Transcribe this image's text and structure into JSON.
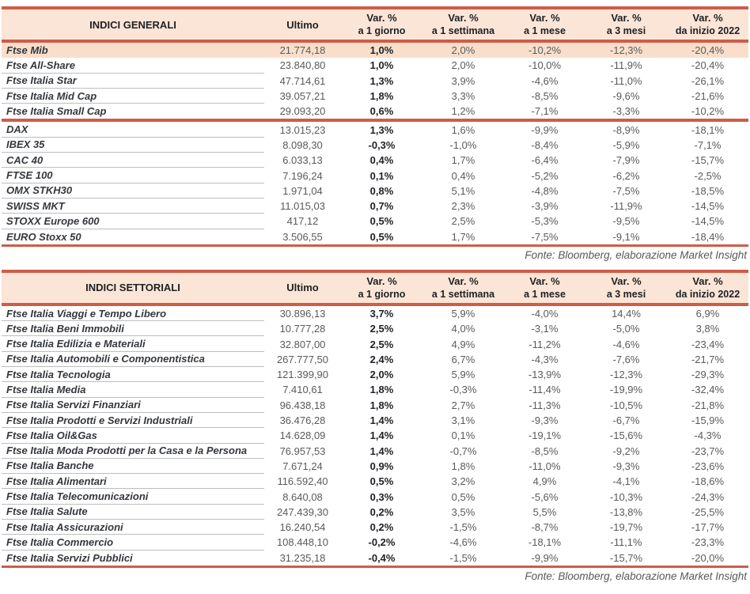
{
  "colors": {
    "accent_line": "#CE5D48",
    "header_bg": "#FBE5D6",
    "highlight_row_bg": "#F9DFCB"
  },
  "tables": [
    {
      "title": "INDICI GENERALI",
      "col_headers": [
        {
          "line1": "Ultimo",
          "line2": ""
        },
        {
          "line1": "Var. %",
          "line2": "a 1 giorno"
        },
        {
          "line1": "Var. %",
          "line2": "a 1 settimana"
        },
        {
          "line1": "Var. %",
          "line2": "a 1 mese"
        },
        {
          "line1": "Var. %",
          "line2": "a 3 mesi"
        },
        {
          "line1": "Var. %",
          "line2": "da inizio 2022"
        }
      ],
      "groups": [
        {
          "rows": [
            {
              "name": "Ftse Mib",
              "highlight": true,
              "values": [
                "21.774,18",
                "1,0%",
                "2,0%",
                "-10,2%",
                "-12,3%",
                "-20,4%"
              ]
            },
            {
              "name": "Ftse All-Share",
              "values": [
                "23.840,80",
                "1,0%",
                "2,0%",
                "-10,0%",
                "-11,9%",
                "-20,4%"
              ]
            },
            {
              "name": "Ftse Italia Star",
              "values": [
                "47.714,61",
                "1,3%",
                "3,9%",
                "-4,6%",
                "-11,0%",
                "-26,1%"
              ]
            },
            {
              "name": "Ftse Italia Mid Cap",
              "values": [
                "39.057,21",
                "1,8%",
                "3,3%",
                "-8,5%",
                "-9,6%",
                "-21,6%"
              ]
            },
            {
              "name": "Ftse Italia Small Cap",
              "values": [
                "29.093,20",
                "0,6%",
                "1,2%",
                "-7,1%",
                "-3,3%",
                "-10,2%"
              ]
            }
          ]
        },
        {
          "rows": [
            {
              "name": "DAX",
              "values": [
                "13.015,23",
                "1,3%",
                "1,6%",
                "-9,9%",
                "-8,9%",
                "-18,1%"
              ]
            },
            {
              "name": "IBEX 35",
              "values": [
                "8.098,30",
                "-0,3%",
                "-1,0%",
                "-8,4%",
                "-5,9%",
                "-7,1%"
              ]
            },
            {
              "name": "CAC 40",
              "values": [
                "6.033,13",
                "0,4%",
                "1,7%",
                "-6,4%",
                "-7,9%",
                "-15,7%"
              ]
            },
            {
              "name": "FTSE 100",
              "values": [
                "7.196,24",
                "0,1%",
                "0,4%",
                "-5,2%",
                "-6,2%",
                "-2,5%"
              ]
            },
            {
              "name": "OMX STKH30",
              "values": [
                "1.971,04",
                "0,8%",
                "5,1%",
                "-4,8%",
                "-7,5%",
                "-18,5%"
              ]
            },
            {
              "name": "SWISS MKT",
              "values": [
                "11.015,03",
                "0,7%",
                "2,3%",
                "-3,9%",
                "-11,9%",
                "-14,5%"
              ]
            },
            {
              "name": "STOXX Europe 600",
              "values": [
                "417,12",
                "0,5%",
                "2,5%",
                "-5,3%",
                "-9,5%",
                "-14,5%"
              ]
            },
            {
              "name": "EURO Stoxx 50",
              "values": [
                "3.506,55",
                "0,5%",
                "1,7%",
                "-7,5%",
                "-9,1%",
                "-18,4%"
              ]
            }
          ]
        }
      ],
      "source": "Fonte: Bloomberg, elaborazione Market Insight"
    },
    {
      "title": "INDICI SETTORIALI",
      "col_headers": [
        {
          "line1": "Ultimo",
          "line2": ""
        },
        {
          "line1": "Var. %",
          "line2": "a 1 giorno"
        },
        {
          "line1": "Var. %",
          "line2": "a 1 settimana"
        },
        {
          "line1": "Var. %",
          "line2": "a 1 mese"
        },
        {
          "line1": "Var. %",
          "line2": "a 3 mesi"
        },
        {
          "line1": "Var. %",
          "line2": "da inizio 2022"
        }
      ],
      "groups": [
        {
          "rows": [
            {
              "name": "Ftse Italia Viaggi e Tempo Libero",
              "values": [
                "30.896,13",
                "3,7%",
                "5,9%",
                "-4,0%",
                "14,4%",
                "6,9%"
              ]
            },
            {
              "name": "Ftse Italia Beni Immobili",
              "values": [
                "10.777,28",
                "2,5%",
                "4,0%",
                "-3,1%",
                "-5,0%",
                "3,8%"
              ]
            },
            {
              "name": "Ftse Italia Edilizia e Materiali",
              "values": [
                "32.807,00",
                "2,5%",
                "4,9%",
                "-11,2%",
                "-4,6%",
                "-23,4%"
              ]
            },
            {
              "name": "Ftse Italia Automobili e Componentistica",
              "values": [
                "267.777,50",
                "2,4%",
                "6,7%",
                "-4,3%",
                "-7,6%",
                "-21,7%"
              ]
            },
            {
              "name": "Ftse Italia Tecnologia",
              "values": [
                "121.399,90",
                "2,0%",
                "5,9%",
                "-13,9%",
                "-12,3%",
                "-29,3%"
              ]
            },
            {
              "name": "Ftse Italia Media",
              "values": [
                "7.410,61",
                "1,8%",
                "-0,3%",
                "-11,4%",
                "-19,9%",
                "-32,4%"
              ]
            },
            {
              "name": "Ftse Italia Servizi Finanziari",
              "values": [
                "96.438,18",
                "1,8%",
                "2,7%",
                "-11,3%",
                "-10,5%",
                "-21,8%"
              ]
            },
            {
              "name": "Ftse Italia Prodotti e Servizi Industriali",
              "values": [
                "36.476,28",
                "1,4%",
                "3,1%",
                "-9,3%",
                "-6,7%",
                "-15,9%"
              ]
            },
            {
              "name": "Ftse Italia Oil&Gas",
              "values": [
                "14.628,09",
                "1,4%",
                "0,1%",
                "-19,1%",
                "-15,6%",
                "-4,3%"
              ]
            },
            {
              "name": "Ftse Italia Moda Prodotti per la Casa e la Persona",
              "values": [
                "76.957,53",
                "1,4%",
                "-0,7%",
                "-8,5%",
                "-9,2%",
                "-23,7%"
              ]
            },
            {
              "name": "Ftse Italia Banche",
              "values": [
                "7.671,24",
                "0,9%",
                "1,8%",
                "-11,0%",
                "-9,3%",
                "-23,6%"
              ]
            },
            {
              "name": "Ftse Italia Alimentari",
              "values": [
                "116.592,40",
                "0,5%",
                "3,2%",
                "4,9%",
                "-4,1%",
                "-18,6%"
              ]
            },
            {
              "name": "Ftse Italia Telecomunicazioni",
              "values": [
                "8.640,08",
                "0,3%",
                "0,5%",
                "-5,6%",
                "-10,3%",
                "-24,3%"
              ]
            },
            {
              "name": "Ftse Italia Salute",
              "values": [
                "247.439,30",
                "0,2%",
                "3,5%",
                "5,5%",
                "-13,8%",
                "-25,5%"
              ]
            },
            {
              "name": "Ftse Italia Assicurazioni",
              "values": [
                "16.240,54",
                "0,2%",
                "-1,5%",
                "-8,7%",
                "-19,7%",
                "-17,7%"
              ]
            },
            {
              "name": "Ftse Italia Commercio",
              "values": [
                "108.448,10",
                "-0,2%",
                "-4,6%",
                "-18,1%",
                "-11,1%",
                "-23,3%"
              ]
            },
            {
              "name": "Ftse Italia Servizi Pubblici",
              "values": [
                "31.235,18",
                "-0,4%",
                "-1,5%",
                "-9,9%",
                "-15,7%",
                "-20,0%"
              ]
            }
          ]
        }
      ],
      "source": "Fonte: Bloomberg, elaborazione Market Insight"
    }
  ]
}
